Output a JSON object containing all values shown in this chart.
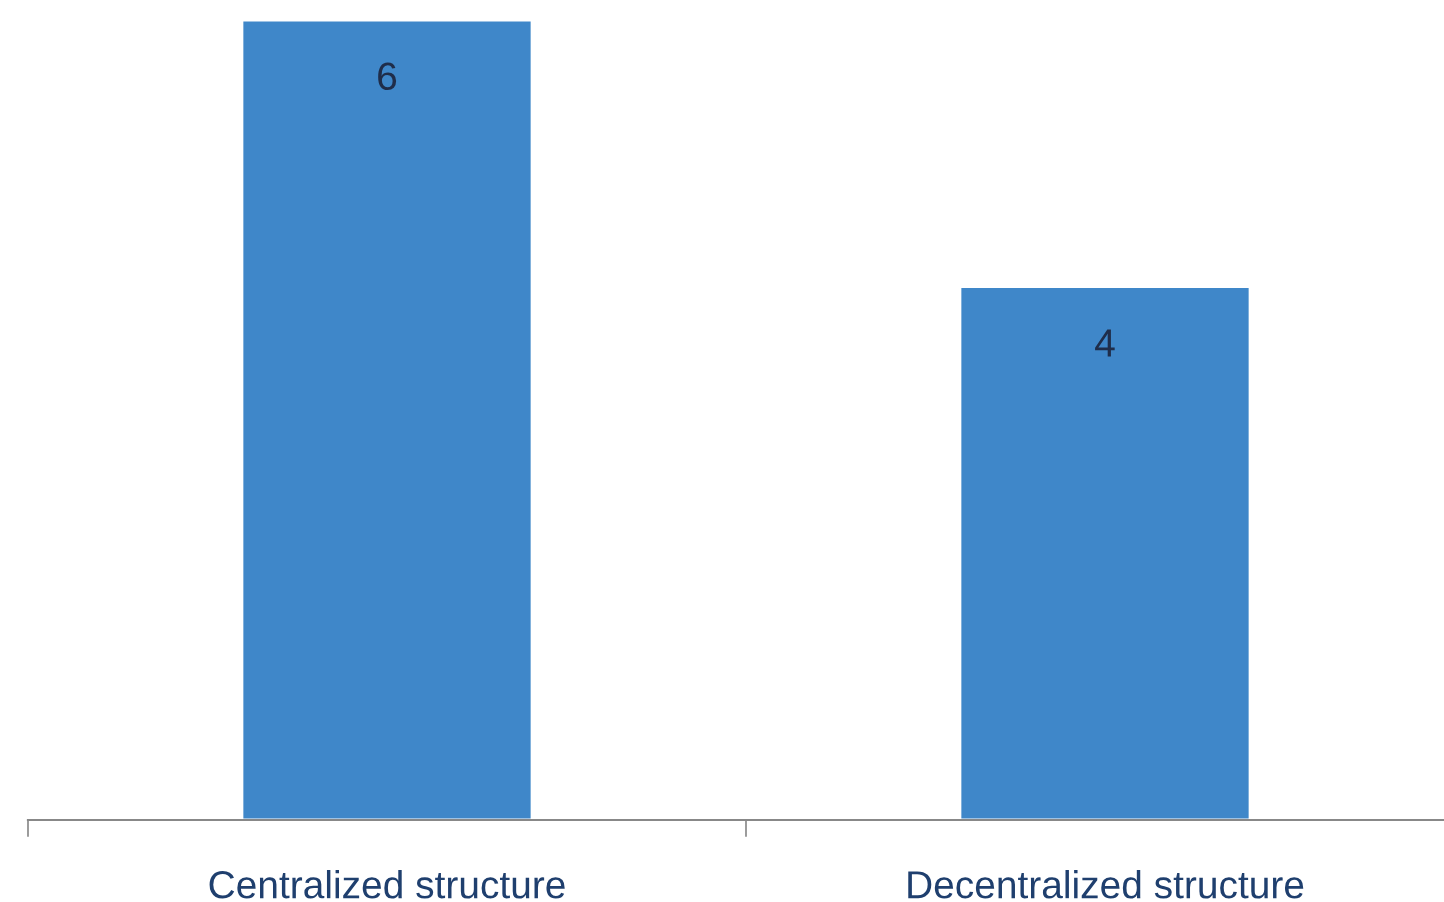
{
  "chart_data": {
    "type": "bar",
    "categories": [
      "Centralized structure",
      "Decentralized structure"
    ],
    "values": [
      6,
      4
    ],
    "color": "#3f87c9",
    "data_labels": true,
    "grid": false,
    "legend": false,
    "tick_labels": "x"
  }
}
